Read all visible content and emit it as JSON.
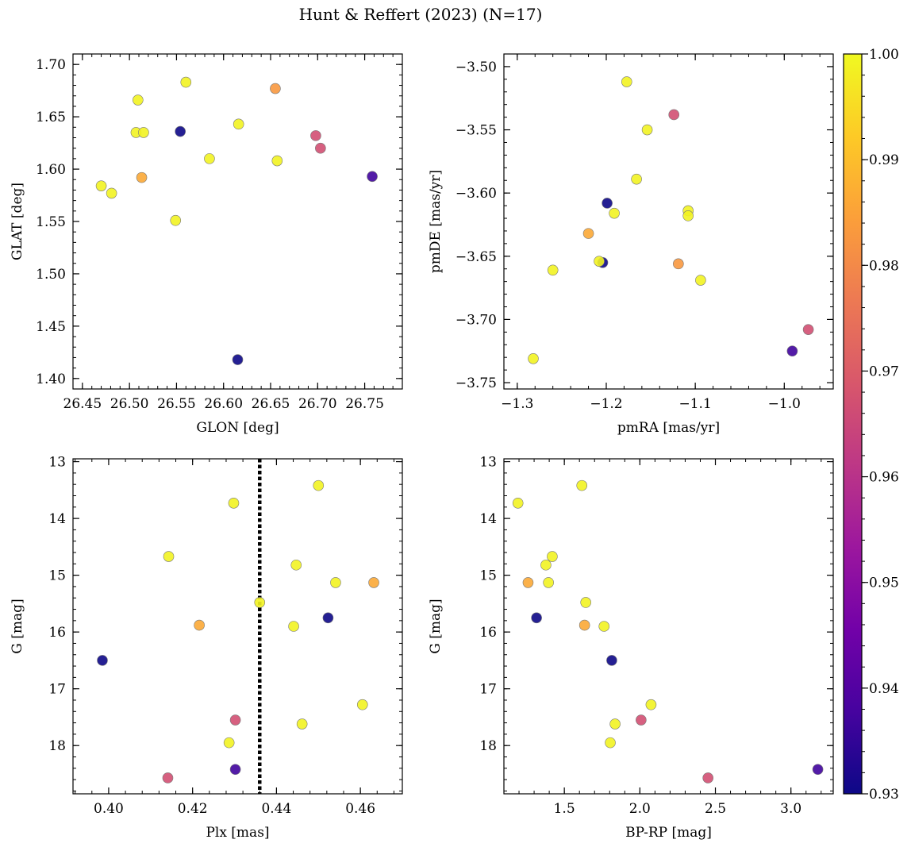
{
  "figure": {
    "title": "Hunt & Reffert (2023) (N=17)"
  },
  "colormap": {
    "name": "plasma",
    "vmin": 0.93,
    "vmax": 1.0,
    "tick_labels": [
      "0.93",
      "0.94",
      "0.95",
      "0.96",
      "0.97",
      "0.98",
      "0.99",
      "1.00"
    ],
    "tick_values": [
      0.93,
      0.94,
      0.95,
      0.96,
      0.97,
      0.98,
      0.99,
      1.0
    ],
    "stops": [
      "#0d0887",
      "#46039f",
      "#7201a8",
      "#9c179e",
      "#bd3786",
      "#d8576b",
      "#ed7953",
      "#fb9f3a",
      "#fdca26",
      "#f0f921"
    ]
  },
  "chart_data": [
    {
      "id": "glon-glat",
      "type": "scatter",
      "title": "",
      "xlabel": "GLON [deg]",
      "ylabel": "GLAT [deg]",
      "xlim": [
        26.44,
        26.79
      ],
      "ylim": [
        1.39,
        1.71
      ],
      "invert_y": false,
      "xticks": [
        26.45,
        26.5,
        26.55,
        26.6,
        26.65,
        26.7,
        26.75
      ],
      "xtick_labels": [
        "26.45",
        "26.50",
        "26.55",
        "26.60",
        "26.65",
        "26.70",
        "26.75"
      ],
      "yticks": [
        1.4,
        1.45,
        1.5,
        1.55,
        1.6,
        1.65,
        1.7
      ],
      "ytick_labels": [
        "1.40",
        "1.45",
        "1.50",
        "1.55",
        "1.60",
        "1.65",
        "1.70"
      ],
      "points": [
        {
          "x": 26.47,
          "y": 1.584,
          "c": 0.999
        },
        {
          "x": 26.481,
          "y": 1.577,
          "c": 0.999
        },
        {
          "x": 26.509,
          "y": 1.666,
          "c": 0.999
        },
        {
          "x": 26.507,
          "y": 1.635,
          "c": 0.999
        },
        {
          "x": 26.515,
          "y": 1.635,
          "c": 0.999
        },
        {
          "x": 26.513,
          "y": 1.592,
          "c": 0.986
        },
        {
          "x": 26.554,
          "y": 1.636,
          "c": 0.93
        },
        {
          "x": 26.56,
          "y": 1.683,
          "c": 0.999
        },
        {
          "x": 26.549,
          "y": 1.551,
          "c": 0.999
        },
        {
          "x": 26.585,
          "y": 1.61,
          "c": 0.999
        },
        {
          "x": 26.616,
          "y": 1.643,
          "c": 0.999
        },
        {
          "x": 26.615,
          "y": 1.418,
          "c": 0.93
        },
        {
          "x": 26.655,
          "y": 1.677,
          "c": 0.983
        },
        {
          "x": 26.657,
          "y": 1.608,
          "c": 0.999
        },
        {
          "x": 26.698,
          "y": 1.632,
          "c": 0.967
        },
        {
          "x": 26.703,
          "y": 1.62,
          "c": 0.967
        },
        {
          "x": 26.758,
          "y": 1.593,
          "c": 0.937
        }
      ]
    },
    {
      "id": "pmra-pmde",
      "type": "scatter",
      "title": "",
      "xlabel": "pmRA [mas/yr]",
      "ylabel": "pmDE [mas/yr]",
      "xlim": [
        -1.315,
        -0.945
      ],
      "ylim": [
        -3.755,
        -3.49
      ],
      "invert_y": false,
      "xticks": [
        -1.3,
        -1.2,
        -1.1,
        -1.0
      ],
      "xtick_labels": [
        "−1.3",
        "−1.2",
        "−1.1",
        "−1.0"
      ],
      "yticks": [
        -3.75,
        -3.7,
        -3.65,
        -3.6,
        -3.55,
        -3.5
      ],
      "ytick_labels": [
        "−3.75",
        "−3.70",
        "−3.65",
        "−3.60",
        "−3.55",
        "−3.50"
      ],
      "points": [
        {
          "x": -1.177,
          "y": -3.512,
          "c": 0.999
        },
        {
          "x": -1.124,
          "y": -3.538,
          "c": 0.967
        },
        {
          "x": -1.154,
          "y": -3.55,
          "c": 0.999
        },
        {
          "x": -1.166,
          "y": -3.589,
          "c": 0.999
        },
        {
          "x": -1.199,
          "y": -3.608,
          "c": 0.93
        },
        {
          "x": -1.191,
          "y": -3.616,
          "c": 0.999
        },
        {
          "x": -1.108,
          "y": -3.614,
          "c": 0.999
        },
        {
          "x": -1.108,
          "y": -3.618,
          "c": 0.999
        },
        {
          "x": -1.22,
          "y": -3.632,
          "c": 0.986
        },
        {
          "x": -1.204,
          "y": -3.655,
          "c": 0.93
        },
        {
          "x": -1.208,
          "y": -3.654,
          "c": 0.999
        },
        {
          "x": -1.119,
          "y": -3.656,
          "c": 0.983
        },
        {
          "x": -1.26,
          "y": -3.661,
          "c": 0.999
        },
        {
          "x": -1.094,
          "y": -3.669,
          "c": 0.999
        },
        {
          "x": -0.973,
          "y": -3.708,
          "c": 0.967
        },
        {
          "x": -0.991,
          "y": -3.725,
          "c": 0.937
        },
        {
          "x": -1.282,
          "y": -3.731,
          "c": 0.999
        }
      ]
    },
    {
      "id": "plx-g",
      "type": "scatter",
      "title": "",
      "xlabel": "Plx [mas]",
      "ylabel": "G [mag]",
      "xlim": [
        0.3915,
        0.47
      ],
      "ylim": [
        12.95,
        18.85
      ],
      "invert_y": true,
      "xticks": [
        0.4,
        0.42,
        0.44,
        0.46
      ],
      "xtick_labels": [
        "0.40",
        "0.42",
        "0.44",
        "0.46"
      ],
      "yticks": [
        13,
        14,
        15,
        16,
        17,
        18
      ],
      "ytick_labels": [
        "13",
        "14",
        "15",
        "16",
        "17",
        "18"
      ],
      "vline": {
        "x": 0.436,
        "style": "dotted"
      },
      "points": [
        {
          "x": 0.45,
          "y": 13.42,
          "c": 0.999
        },
        {
          "x": 0.4298,
          "y": 13.73,
          "c": 0.999
        },
        {
          "x": 0.4143,
          "y": 14.67,
          "c": 0.999
        },
        {
          "x": 0.4447,
          "y": 14.82,
          "c": 0.999
        },
        {
          "x": 0.4541,
          "y": 15.13,
          "c": 0.999
        },
        {
          "x": 0.4632,
          "y": 15.13,
          "c": 0.986
        },
        {
          "x": 0.436,
          "y": 15.48,
          "c": 0.999
        },
        {
          "x": 0.4523,
          "y": 15.75,
          "c": 0.93
        },
        {
          "x": 0.4216,
          "y": 15.88,
          "c": 0.986
        },
        {
          "x": 0.4441,
          "y": 15.9,
          "c": 0.999
        },
        {
          "x": 0.3985,
          "y": 16.5,
          "c": 0.93
        },
        {
          "x": 0.4605,
          "y": 17.28,
          "c": 0.999
        },
        {
          "x": 0.4302,
          "y": 17.55,
          "c": 0.967
        },
        {
          "x": 0.4461,
          "y": 17.62,
          "c": 0.999
        },
        {
          "x": 0.4287,
          "y": 17.95,
          "c": 0.999
        },
        {
          "x": 0.4302,
          "y": 18.42,
          "c": 0.937
        },
        {
          "x": 0.4141,
          "y": 18.57,
          "c": 0.967
        }
      ]
    },
    {
      "id": "bprp-g",
      "type": "scatter",
      "title": "",
      "xlabel": "BP-RP [mag]",
      "ylabel": "G [mag]",
      "xlim": [
        1.1,
        3.28
      ],
      "ylim": [
        12.95,
        18.85
      ],
      "invert_y": true,
      "xticks": [
        1.5,
        2.0,
        2.5,
        3.0
      ],
      "xtick_labels": [
        "1.5",
        "2.0",
        "2.5",
        "3.0"
      ],
      "yticks": [
        13,
        14,
        15,
        16,
        17,
        18
      ],
      "ytick_labels": [
        "13",
        "14",
        "15",
        "16",
        "17",
        "18"
      ],
      "points": [
        {
          "x": 1.616,
          "y": 13.42,
          "c": 0.999
        },
        {
          "x": 1.193,
          "y": 13.73,
          "c": 0.999
        },
        {
          "x": 1.42,
          "y": 14.67,
          "c": 0.999
        },
        {
          "x": 1.378,
          "y": 14.82,
          "c": 0.999
        },
        {
          "x": 1.395,
          "y": 15.13,
          "c": 0.999
        },
        {
          "x": 1.26,
          "y": 15.13,
          "c": 0.986
        },
        {
          "x": 1.642,
          "y": 15.48,
          "c": 0.999
        },
        {
          "x": 1.316,
          "y": 15.75,
          "c": 0.93
        },
        {
          "x": 1.634,
          "y": 15.88,
          "c": 0.986
        },
        {
          "x": 1.763,
          "y": 15.9,
          "c": 0.999
        },
        {
          "x": 1.814,
          "y": 16.5,
          "c": 0.93
        },
        {
          "x": 2.074,
          "y": 17.28,
          "c": 0.999
        },
        {
          "x": 2.008,
          "y": 17.55,
          "c": 0.967
        },
        {
          "x": 1.836,
          "y": 17.62,
          "c": 0.999
        },
        {
          "x": 1.804,
          "y": 17.95,
          "c": 0.999
        },
        {
          "x": 3.178,
          "y": 18.42,
          "c": 0.937
        },
        {
          "x": 2.451,
          "y": 18.57,
          "c": 0.967
        }
      ]
    }
  ]
}
